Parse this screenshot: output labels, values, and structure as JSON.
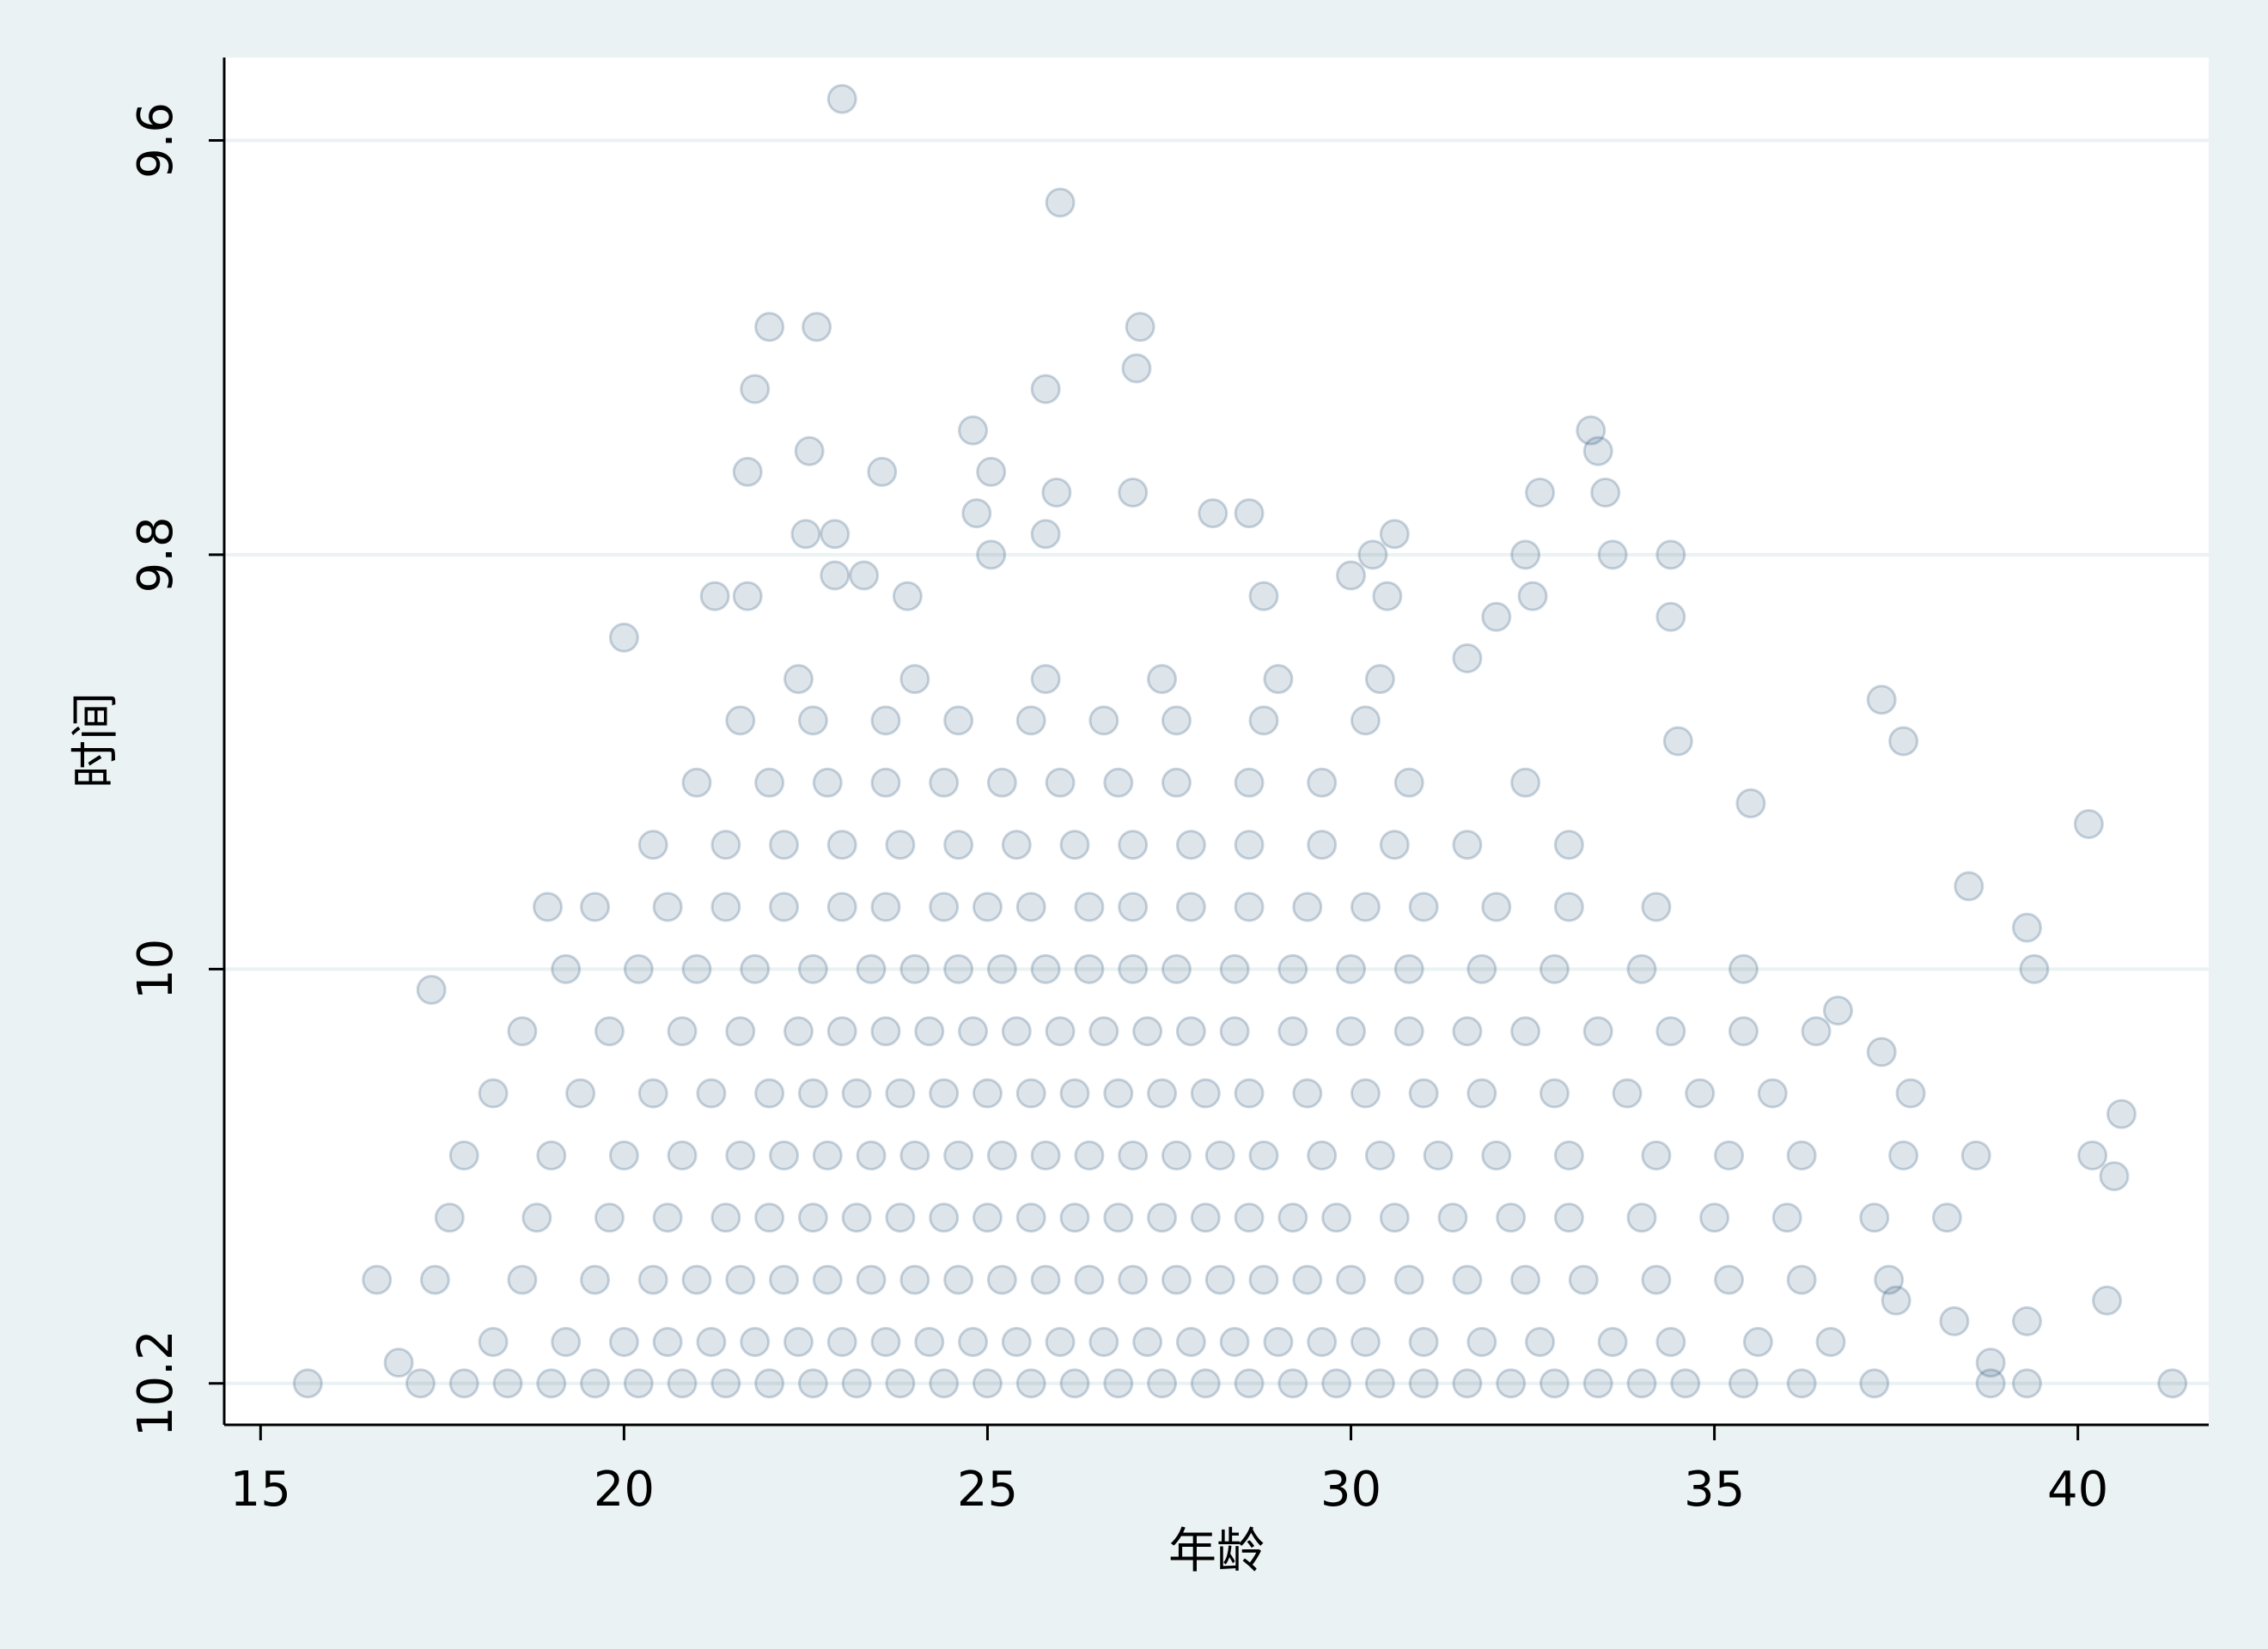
{
  "chart_data": {
    "type": "scatter",
    "x_label": "年龄",
    "y_label": "时间",
    "color": "#1a476f",
    "marker_opacity": 0.15,
    "grid": true,
    "xlim": [
      14.5,
      41.8
    ],
    "xticks": [
      15,
      20,
      25,
      30,
      35,
      40
    ],
    "ylim": [
      10.22,
      9.56
    ],
    "yticks": [
      9.6,
      9.8,
      10,
      10.2
    ],
    "x": [
      23.0,
      26.0,
      22.0,
      22.65,
      27.1,
      27.05,
      25.8,
      21.8,
      24.8,
      33.3,
      33.4,
      22.55,
      21.7,
      25.05,
      23.55,
      25.95,
      32.6,
      27.0,
      33.5,
      28.1,
      28.6,
      24.85,
      22.5,
      22.9,
      25.8,
      32.4,
      34.4,
      25.05,
      30.3,
      30.6,
      33.6,
      22.9,
      23.3,
      30.0,
      28.8,
      21.7,
      21.25,
      23.9,
      30.5,
      32.5,
      20.0,
      34.4,
      32.0,
      31.6,
      37.3,
      37.6,
      34.5,
      35.5,
      40.15,
      38.5,
      39.3,
      39.4,
      36.7,
      17.35,
      18.95,
      16.6,
      16.9,
      15.65,
      41.3,
      40.6,
      40.2,
      40.5,
      40.4,
      39.3,
      38.8,
      38.3,
      38.6,
      39.3,
      37.5,
      37.7,
      37.3,
      17.2,
      17.8,
      18.4,
      19,
      19.6,
      20.2,
      20.8,
      21.4,
      22,
      22.6,
      23.2,
      23.8,
      24.4,
      25,
      25.6,
      26.2,
      26.8,
      27.4,
      28,
      28.6,
      29.2,
      29.8,
      30.4,
      31,
      31.6,
      32.2,
      32.8,
      33.4,
      34,
      34.6,
      35.4,
      36.2,
      37.2,
      38.8,
      18.2,
      19.2,
      20,
      20.6,
      21.2,
      21.8,
      22.4,
      23,
      23.6,
      24.2,
      24.8,
      25.4,
      26,
      26.6,
      27.2,
      27.8,
      28.4,
      29,
      29.6,
      30.2,
      31,
      31.8,
      32.6,
      33.6,
      34.4,
      35.6,
      36.6,
      17.4,
      18.6,
      19.6,
      20.4,
      21,
      21.6,
      22.2,
      22.8,
      23.4,
      24,
      24.6,
      25.2,
      25.8,
      26.4,
      27,
      27.6,
      28.2,
      28.8,
      29.4,
      30,
      30.8,
      31.6,
      32.4,
      33.2,
      34.2,
      35.2,
      36.2,
      37.4,
      17.6,
      18.8,
      19.8,
      20.6,
      21.4,
      22,
      22.6,
      23.2,
      23.8,
      24.4,
      25,
      25.6,
      26.2,
      26.8,
      27.4,
      28,
      28.6,
      29.2,
      29.8,
      30.6,
      31.4,
      32.2,
      33,
      34,
      35,
      36,
      37.2,
      38.2,
      17.8,
      19,
      20,
      20.8,
      21.6,
      22.2,
      22.8,
      23.4,
      24,
      24.6,
      25.2,
      25.8,
      26.4,
      27,
      27.6,
      28.2,
      28.8,
      29.6,
      30.4,
      31.2,
      32,
      33,
      34.2,
      35.2,
      36.2,
      37.6,
      18.2,
      19.4,
      20.4,
      21.2,
      22,
      22.6,
      23.2,
      23.8,
      24.4,
      25,
      25.6,
      26.2,
      26.8,
      27.4,
      28,
      28.6,
      29.4,
      30.2,
      31,
      31.8,
      32.8,
      33.8,
      34.8,
      35.8,
      18.6,
      19.8,
      20.8,
      21.6,
      22.4,
      23,
      23.6,
      24.2,
      24.8,
      25.4,
      26,
      26.6,
      27.2,
      27.8,
      28.4,
      29.2,
      30,
      30.8,
      31.6,
      32.4,
      33.4,
      34.4,
      35.4,
      36.4,
      19.2,
      20.2,
      21,
      21.8,
      22.6,
      23.4,
      24,
      24.6,
      25.2,
      25.8,
      26.4,
      27,
      27.6,
      28.4,
      29.2,
      30,
      30.8,
      31.8,
      32.8,
      34,
      35.4,
      19.6,
      20.6,
      21.4,
      22.2,
      23,
      23.6,
      24.4,
      25,
      25.6,
      26.4,
      27,
      27.8,
      28.6,
      29.4,
      30.2,
      31,
      32,
      33,
      34.2,
      20.4,
      21.4,
      22.2,
      23,
      23.8,
      24.6,
      25.4,
      26.2,
      27,
      27.8,
      28.6,
      29.6,
      30.6,
      31.6,
      33,
      21,
      22,
      22.8,
      23.6,
      24.4,
      25.2,
      26,
      26.8,
      27.6,
      28.6,
      29.6,
      30.8,
      32.4,
      21.6,
      22.6,
      23.6,
      24.6,
      25.6,
      26.6,
      27.6,
      28.8,
      30.2,
      22.4,
      24,
      25.8,
      27.4,
      29,
      30.4
    ],
    "values": [
      9.58,
      9.63,
      9.69,
      9.69,
      9.69,
      9.71,
      9.72,
      9.72,
      9.74,
      9.74,
      9.75,
      9.75,
      9.76,
      9.76,
      9.76,
      9.77,
      9.77,
      9.77,
      9.77,
      9.78,
      9.78,
      9.78,
      9.79,
      9.79,
      9.79,
      9.8,
      9.8,
      9.8,
      9.8,
      9.79,
      9.8,
      9.81,
      9.81,
      9.81,
      9.82,
      9.82,
      9.82,
      9.82,
      9.82,
      9.82,
      9.84,
      9.83,
      9.83,
      9.85,
      9.87,
      9.89,
      9.89,
      9.92,
      9.93,
      9.96,
      9.98,
      10.0,
      10.02,
      10.01,
      9.97,
      10.15,
      10.19,
      10.2,
      10.2,
      10.07,
      10.09,
      10.1,
      10.16,
      10.2,
      10.19,
      10.17,
      10.09,
      10.17,
      10.16,
      10.06,
      10.04,
      10.2,
      10.2,
      10.2,
      10.2,
      10.2,
      10.2,
      10.2,
      10.2,
      10.2,
      10.2,
      10.2,
      10.2,
      10.2,
      10.2,
      10.2,
      10.2,
      10.2,
      10.2,
      10.2,
      10.2,
      10.2,
      10.2,
      10.2,
      10.2,
      10.2,
      10.2,
      10.2,
      10.2,
      10.2,
      10.2,
      10.2,
      10.2,
      10.2,
      10.2,
      10.18,
      10.18,
      10.18,
      10.18,
      10.18,
      10.18,
      10.18,
      10.18,
      10.18,
      10.18,
      10.18,
      10.18,
      10.18,
      10.18,
      10.18,
      10.18,
      10.18,
      10.18,
      10.18,
      10.18,
      10.18,
      10.18,
      10.18,
      10.18,
      10.18,
      10.18,
      10.18,
      10.15,
      10.15,
      10.15,
      10.15,
      10.15,
      10.15,
      10.15,
      10.15,
      10.15,
      10.15,
      10.15,
      10.15,
      10.15,
      10.15,
      10.15,
      10.15,
      10.15,
      10.15,
      10.15,
      10.15,
      10.15,
      10.15,
      10.15,
      10.15,
      10.15,
      10.15,
      10.15,
      10.15,
      10.12,
      10.12,
      10.12,
      10.12,
      10.12,
      10.12,
      10.12,
      10.12,
      10.12,
      10.12,
      10.12,
      10.12,
      10.12,
      10.12,
      10.12,
      10.12,
      10.12,
      10.12,
      10.12,
      10.12,
      10.12,
      10.12,
      10.12,
      10.12,
      10.12,
      10.12,
      10.12,
      10.12,
      10.09,
      10.09,
      10.09,
      10.09,
      10.09,
      10.09,
      10.09,
      10.09,
      10.09,
      10.09,
      10.09,
      10.09,
      10.09,
      10.09,
      10.09,
      10.09,
      10.09,
      10.09,
      10.09,
      10.09,
      10.09,
      10.09,
      10.09,
      10.09,
      10.09,
      10.09,
      10.06,
      10.06,
      10.06,
      10.06,
      10.06,
      10.06,
      10.06,
      10.06,
      10.06,
      10.06,
      10.06,
      10.06,
      10.06,
      10.06,
      10.06,
      10.06,
      10.06,
      10.06,
      10.06,
      10.06,
      10.06,
      10.06,
      10.06,
      10.06,
      10.03,
      10.03,
      10.03,
      10.03,
      10.03,
      10.03,
      10.03,
      10.03,
      10.03,
      10.03,
      10.03,
      10.03,
      10.03,
      10.03,
      10.03,
      10.03,
      10.03,
      10.03,
      10.03,
      10.03,
      10.03,
      10.03,
      10.03,
      10.03,
      10.0,
      10.0,
      10.0,
      10.0,
      10.0,
      10.0,
      10.0,
      10.0,
      10.0,
      10.0,
      10.0,
      10.0,
      10.0,
      10.0,
      10.0,
      10.0,
      10.0,
      10.0,
      10.0,
      10.0,
      10.0,
      9.97,
      9.97,
      9.97,
      9.97,
      9.97,
      9.97,
      9.97,
      9.97,
      9.97,
      9.97,
      9.97,
      9.97,
      9.97,
      9.97,
      9.97,
      9.97,
      9.97,
      9.97,
      9.97,
      9.94,
      9.94,
      9.94,
      9.94,
      9.94,
      9.94,
      9.94,
      9.94,
      9.94,
      9.94,
      9.94,
      9.94,
      9.94,
      9.94,
      9.94,
      9.91,
      9.91,
      9.91,
      9.91,
      9.91,
      9.91,
      9.91,
      9.91,
      9.91,
      9.91,
      9.91,
      9.91,
      9.91,
      9.88,
      9.88,
      9.88,
      9.88,
      9.88,
      9.88,
      9.88,
      9.88,
      9.88,
      9.86,
      9.86,
      9.86,
      9.86,
      9.86,
      9.86
    ]
  }
}
